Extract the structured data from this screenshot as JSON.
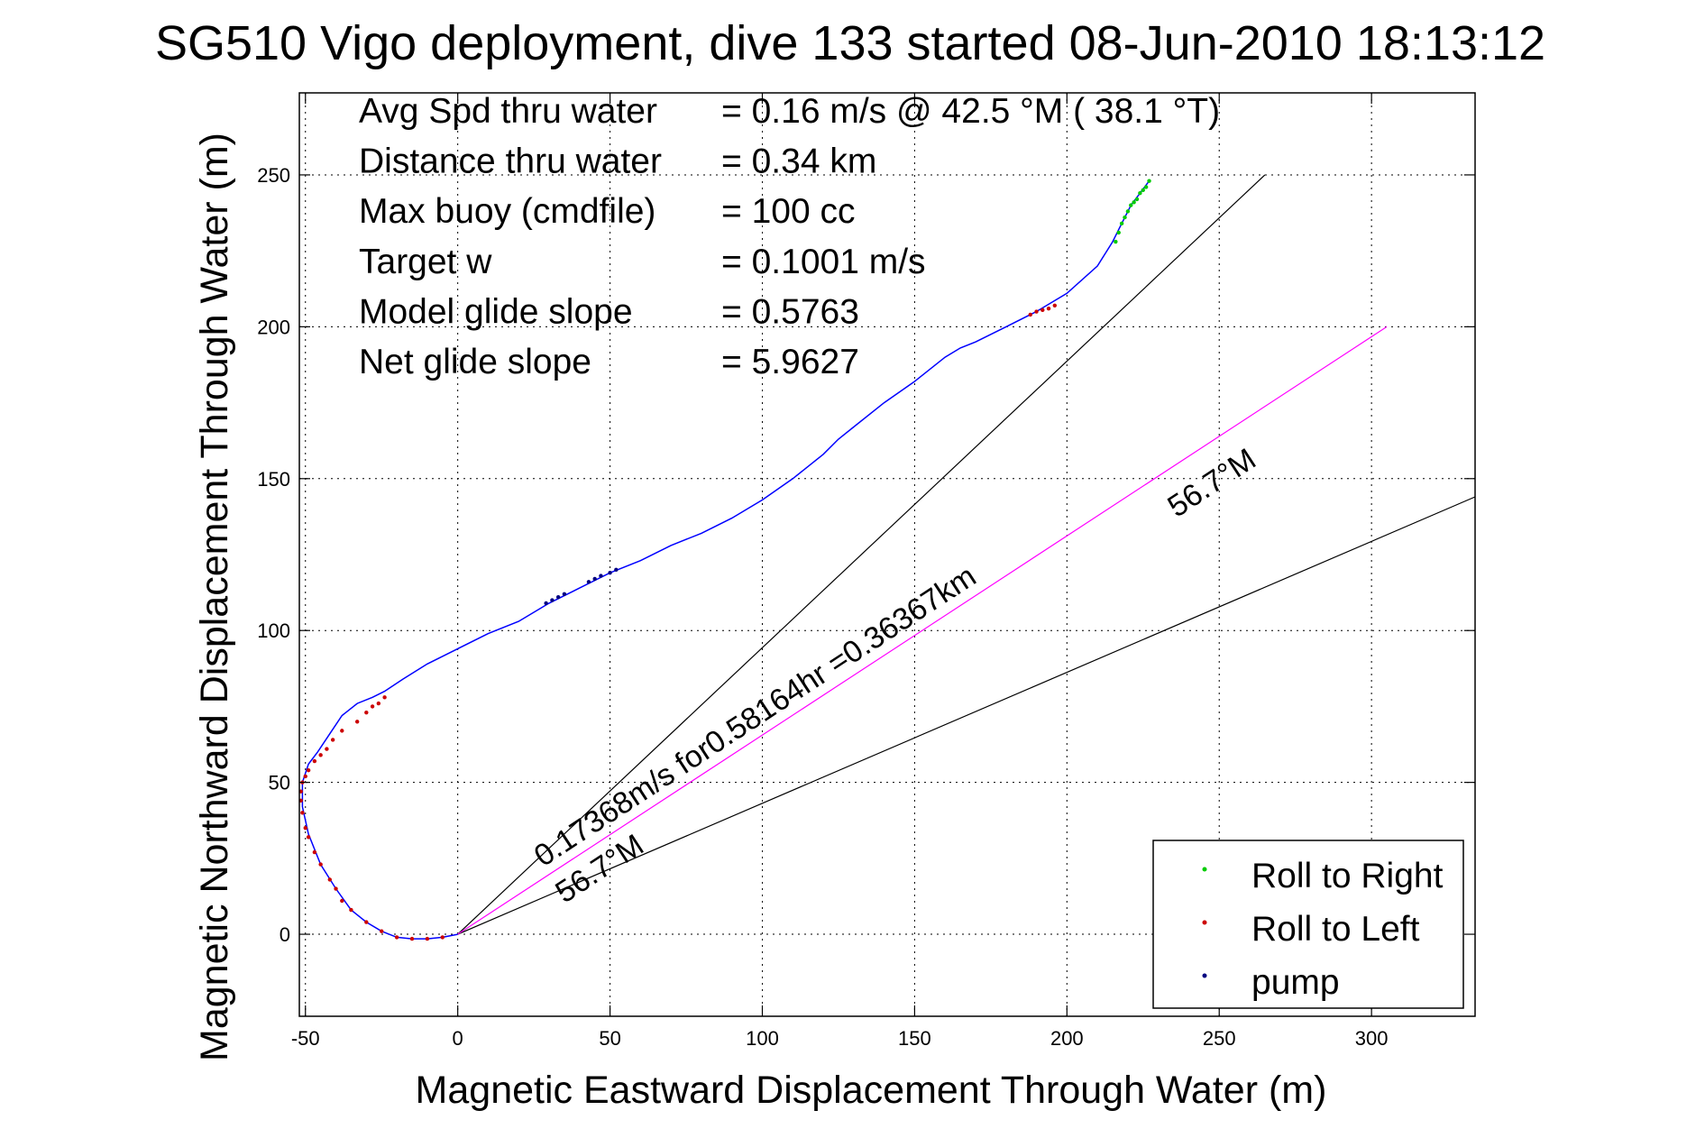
{
  "chart_data": {
    "type": "line",
    "title": "SG510 Vigo deployment, dive 133 started 08-Jun-2010 18:13:12",
    "xlabel": "Magnetic Eastward Displacement Through Water (m)",
    "ylabel": "Magnetic Northward Displacement Through Water (m)",
    "xlim": [
      -52,
      334
    ],
    "ylim": [
      -27,
      277
    ],
    "xticks": [
      -50,
      0,
      50,
      100,
      150,
      200,
      250,
      300
    ],
    "yticks": [
      0,
      50,
      100,
      150,
      200,
      250
    ],
    "xtick_labels": [
      "-50",
      "0",
      "50",
      "100",
      "150",
      "200",
      "250",
      "300"
    ],
    "ytick_labels": [
      "0",
      "50",
      "100",
      "150",
      "200",
      "250"
    ],
    "grid": true,
    "legend_position": "bottom-right",
    "stats": [
      {
        "label": "Avg Spd thru water",
        "value": "=  0.16 m/s @  42.5 °M ( 38.1 °T)"
      },
      {
        "label": "Distance thru water",
        "value": "=  0.34 km"
      },
      {
        "label": "Max buoy (cmdfile)",
        "value": "= 100 cc"
      },
      {
        "label": "Target w",
        "value": "= 0.1001 m/s"
      },
      {
        "label": "Model glide slope",
        "value": "= 0.5763"
      },
      {
        "label": "Net glide slope",
        "value": "= 5.9627"
      }
    ],
    "track": {
      "color": "#0000ff",
      "x": [
        0,
        -5,
        -10,
        -15,
        -20,
        -25,
        -30,
        -35,
        -40,
        -45,
        -49,
        -51,
        -51,
        -49,
        -46,
        -42,
        -38,
        -33,
        -28,
        -24,
        -18,
        -10,
        0,
        10,
        20,
        30,
        40,
        50,
        60,
        70,
        80,
        90,
        100,
        110,
        115,
        120,
        125,
        130,
        140,
        150,
        160,
        165,
        170,
        180,
        190,
        200,
        210,
        215,
        218,
        221,
        224,
        227
      ],
      "y": [
        0,
        -1,
        -1.5,
        -1.5,
        -1,
        1,
        4,
        8,
        15,
        23,
        33,
        42,
        50,
        56,
        60,
        66,
        72,
        76,
        78,
        80,
        84,
        89,
        94,
        99,
        103,
        109,
        114,
        119,
        123,
        128,
        132,
        137,
        143,
        150,
        154,
        158,
        163,
        167,
        175,
        182,
        190,
        193,
        195,
        200,
        205,
        211,
        220,
        228,
        234,
        240,
        244,
        248
      ]
    },
    "heading_lines": [
      {
        "label": "",
        "color": "#000000",
        "x": [
          0,
          265
        ],
        "y": [
          0,
          250
        ]
      },
      {
        "label": "56.7°M",
        "color": "#000000",
        "x": [
          0,
          334
        ],
        "y": [
          0,
          144
        ]
      },
      {
        "label": "56.7°M",
        "color": "#ff00ff",
        "x": [
          0,
          305
        ],
        "y": [
          0,
          200
        ]
      }
    ],
    "annotations": [
      {
        "text": "0.17368m/s for0.58164hr =0.36367km",
        "x": 28,
        "y": 22,
        "angle_deg": -33.3
      },
      {
        "text": "56.7°M",
        "x": 35,
        "y": 10,
        "angle_deg": -33.3
      },
      {
        "text": "56.7°M",
        "x": 236,
        "y": 137,
        "angle_deg": -33.3
      }
    ],
    "series": [
      {
        "name": "Roll to Right",
        "color": "#00cc00",
        "x": [
          216,
          217,
          218,
          219,
          220,
          221,
          222,
          223,
          224,
          225,
          226,
          227
        ],
        "y": [
          228,
          231,
          234,
          236,
          238,
          240,
          241,
          242,
          244,
          245,
          246,
          248
        ]
      },
      {
        "name": "Roll to Left",
        "color": "#cc0000",
        "x": [
          -5,
          -10,
          -15,
          -20,
          -25,
          -30,
          -35,
          -38,
          -40,
          -42,
          -45,
          -47,
          -49,
          -50,
          -51,
          -51.5,
          -51.5,
          -51,
          -50,
          -49,
          -47,
          -45,
          -43,
          -41,
          -38,
          -33,
          -30,
          -28,
          -26,
          -24,
          188,
          190,
          192,
          194,
          196
        ],
        "y": [
          -1,
          -1.5,
          -1.5,
          -1,
          1,
          4,
          8,
          11,
          15,
          18,
          23,
          27,
          32,
          35,
          40,
          44,
          47,
          50,
          52,
          54,
          57,
          59,
          61,
          64,
          67,
          70,
          73,
          75,
          76,
          78,
          204,
          205,
          205.5,
          206,
          207
        ]
      },
      {
        "name": "pump",
        "color": "#000080",
        "x": [
          29,
          31,
          33,
          35,
          43,
          45,
          47,
          50,
          52
        ],
        "y": [
          109,
          110,
          111,
          112,
          116,
          117,
          118,
          119,
          120
        ]
      }
    ]
  }
}
